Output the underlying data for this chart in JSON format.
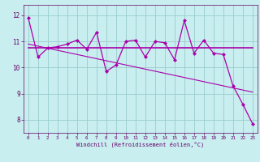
{
  "xlabel": "Windchill (Refroidissement éolien,°C)",
  "background_color": "#c8eef0",
  "line_color": "#aa00aa",
  "grid_color": "#99cccc",
  "xlim": [
    -0.5,
    23.5
  ],
  "ylim": [
    7.5,
    12.4
  ],
  "yticks": [
    8,
    9,
    10,
    11,
    12
  ],
  "xticks": [
    0,
    1,
    2,
    3,
    4,
    5,
    6,
    7,
    8,
    9,
    10,
    11,
    12,
    13,
    14,
    15,
    16,
    17,
    18,
    19,
    20,
    21,
    22,
    23
  ],
  "series1": [
    11.9,
    10.4,
    10.75,
    10.8,
    10.9,
    11.05,
    10.7,
    11.35,
    9.85,
    10.1,
    11.0,
    11.05,
    10.4,
    11.0,
    10.95,
    10.3,
    11.8,
    10.55,
    11.05,
    10.55,
    10.5,
    9.3,
    8.6,
    7.85
  ],
  "series2": [
    10.75,
    10.75,
    10.75,
    10.75,
    10.75,
    10.75,
    10.75,
    10.75,
    10.75,
    10.75,
    10.75,
    10.75,
    10.75,
    10.75,
    10.75,
    10.75,
    10.75,
    10.75,
    10.75,
    10.75,
    10.75,
    10.75,
    10.75,
    10.75
  ],
  "series3_slope": [
    10.9,
    10.82,
    10.74,
    10.66,
    10.58,
    10.5,
    10.42,
    10.34,
    10.26,
    10.18,
    10.1,
    10.02,
    9.94,
    9.86,
    9.78,
    9.7,
    9.62,
    9.54,
    9.46,
    9.38,
    9.3,
    9.22,
    9.14,
    9.06
  ]
}
